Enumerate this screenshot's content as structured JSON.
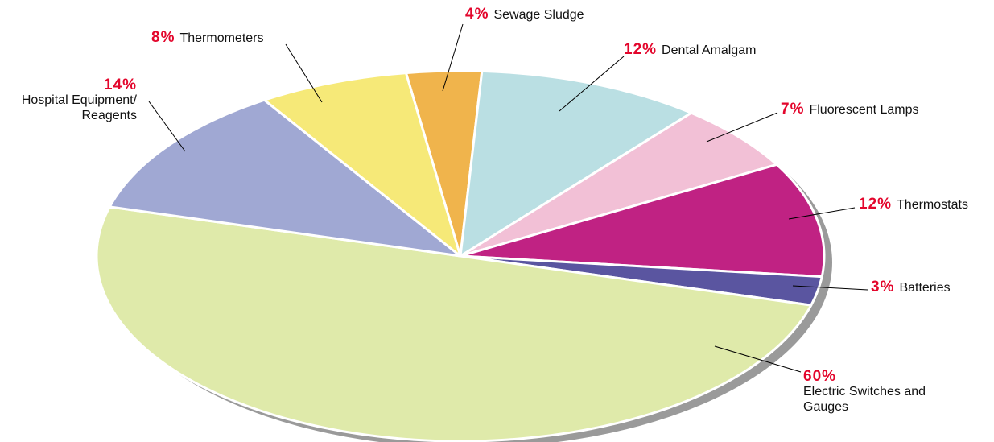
{
  "chart_data": {
    "type": "pie",
    "categories": [
      "Sewage Sludge",
      "Dental Amalgam",
      "Fluorescent Lamps",
      "Thermostats",
      "Batteries",
      "Electric Switches and Gauges",
      "Hospital Equipment/ Reagents",
      "Thermometers"
    ],
    "values": [
      4,
      12,
      7,
      12,
      3,
      60,
      14,
      8
    ],
    "value_labels": [
      "4%",
      "12%",
      "7%",
      "12%",
      "3%",
      "60%",
      "14%",
      "8%"
    ],
    "colors": [
      "#f0b44c",
      "#badfe3",
      "#f2c0d6",
      "#c02283",
      "#5a55a0",
      "#dfeaaa",
      "#a0a8d3",
      "#f6e978"
    ]
  }
}
